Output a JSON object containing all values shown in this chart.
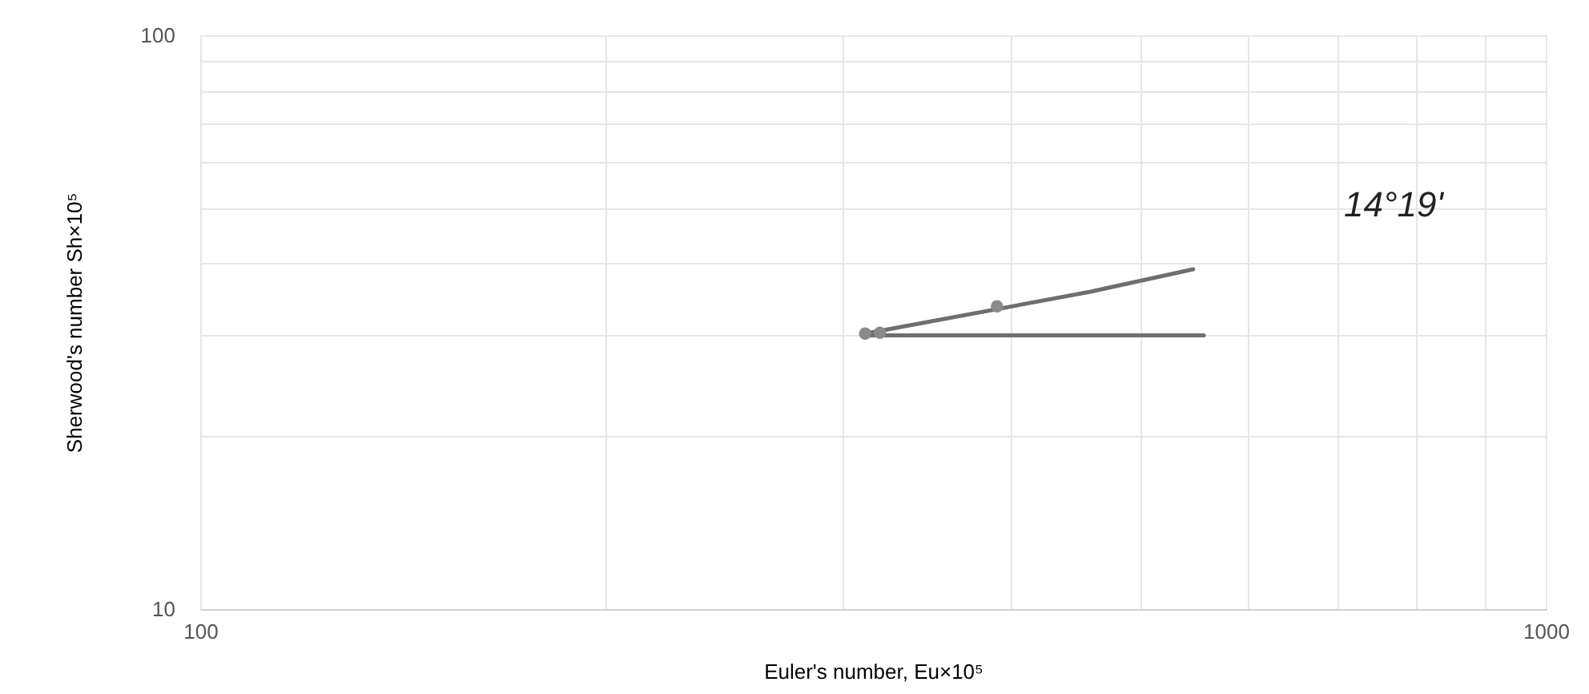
{
  "chart_data": {
    "type": "line",
    "xlabel": "Euler's number, Eu×10⁵",
    "ylabel": "Sherwood's number Sh×10⁵",
    "log": "xy",
    "grid": true,
    "xlim": [
      100,
      1000
    ],
    "ylim": [
      10,
      100
    ],
    "xticks": [
      100,
      {
        "value": 200,
        "label": null
      },
      {
        "value": 300,
        "label": null
      },
      {
        "value": 400,
        "label": null
      },
      {
        "value": 500,
        "label": null
      },
      {
        "value": 600,
        "label": null
      },
      {
        "value": 700,
        "label": null
      },
      {
        "value": 800,
        "label": null
      },
      {
        "value": 900,
        "label": null
      },
      1000
    ],
    "yticks": [
      10,
      {
        "value": 20,
        "label": null
      },
      {
        "value": 30,
        "label": null
      },
      {
        "value": 40,
        "label": null
      },
      {
        "value": 50,
        "label": null
      },
      {
        "value": 60,
        "label": null
      },
      {
        "value": 70,
        "label": null
      },
      {
        "value": 80,
        "label": null
      },
      {
        "value": 90,
        "label": null
      },
      100
    ],
    "series": [
      {
        "color": "#6e6e6e",
        "x": [
          312,
          458,
          547
        ],
        "values": [
          30.2,
          35.7,
          39.1
        ]
      },
      {
        "color": "#6e6e6e",
        "x": [
          312,
          494,
          557
        ],
        "values": [
          30,
          30,
          30
        ]
      },
      {
        "type": "scatter",
        "color": "#8a8a8a",
        "marker": "circle",
        "x": [
          312,
          320,
          391
        ],
        "values": [
          30.2,
          30.3,
          33.7
        ]
      }
    ],
    "annotations": [
      "14°19'"
    ]
  }
}
